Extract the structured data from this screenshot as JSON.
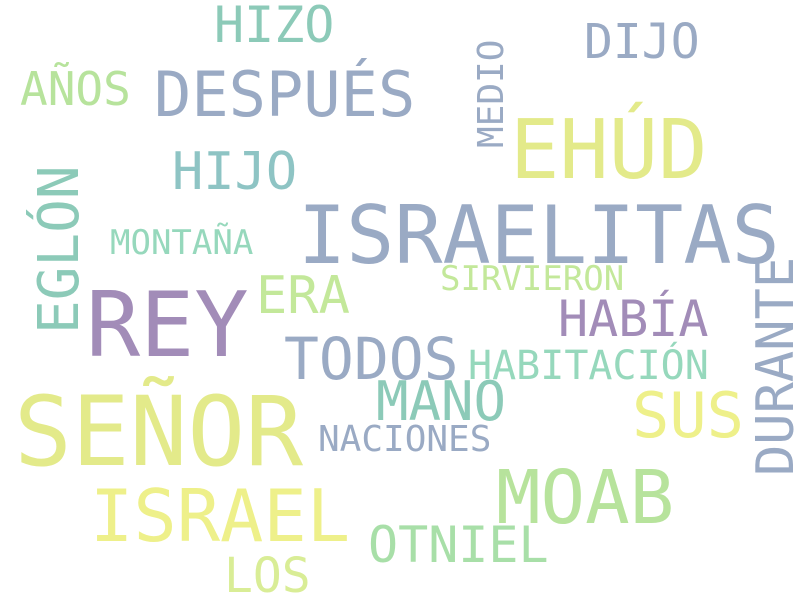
{
  "words": {
    "senor": {
      "text": "SEÑOR",
      "color": "#e3ea8a"
    },
    "israelitas": {
      "text": "ISRAELITAS",
      "color": "#9aaac4"
    },
    "rey": {
      "text": "REY",
      "color": "#a28cb8"
    },
    "ehud": {
      "text": "EHÚD",
      "color": "#e3ea8a"
    },
    "moab": {
      "text": "MOAB",
      "color": "#b7e39c"
    },
    "israel": {
      "text": "ISRAEL",
      "color": "#eef08a"
    },
    "despues": {
      "text": "DESPUÉS",
      "color": "#9aaac4"
    },
    "todos": {
      "text": "TODOS",
      "color": "#9aaac4"
    },
    "sus": {
      "text": "SUS",
      "color": "#eef08a"
    },
    "mano": {
      "text": "MANO",
      "color": "#8ccab8"
    },
    "otniel": {
      "text": "OTNIEL",
      "color": "#a8dfa8"
    },
    "hijo": {
      "text": "HIJO",
      "color": "#8ec4c4"
    },
    "era": {
      "text": "ERA",
      "color": "#c3e89a"
    },
    "habia": {
      "text": "HABÍA",
      "color": "#a28cb8"
    },
    "hizo": {
      "text": "HIZO",
      "color": "#8ccab8"
    },
    "dijo": {
      "text": "DIJO",
      "color": "#9aaac4"
    },
    "los": {
      "text": "LOS",
      "color": "#d9ed96"
    },
    "anos": {
      "text": "AÑOS",
      "color": "#b7e39c"
    },
    "habitacion": {
      "text": "HABITACIÓN",
      "color": "#96d8bc"
    },
    "naciones": {
      "text": "NACIONES",
      "color": "#9aaac4"
    },
    "sirvieron": {
      "text": "SIRVIERON",
      "color": "#c3e89a"
    },
    "montana": {
      "text": "MONTAÑA",
      "color": "#96d8bc"
    },
    "eglon": {
      "text": "EGLÓN",
      "color": "#8ccab8"
    },
    "durante": {
      "text": "DURANTE",
      "color": "#9aaac4"
    },
    "medio": {
      "text": "MEDIO",
      "color": "#9aaac4"
    }
  }
}
